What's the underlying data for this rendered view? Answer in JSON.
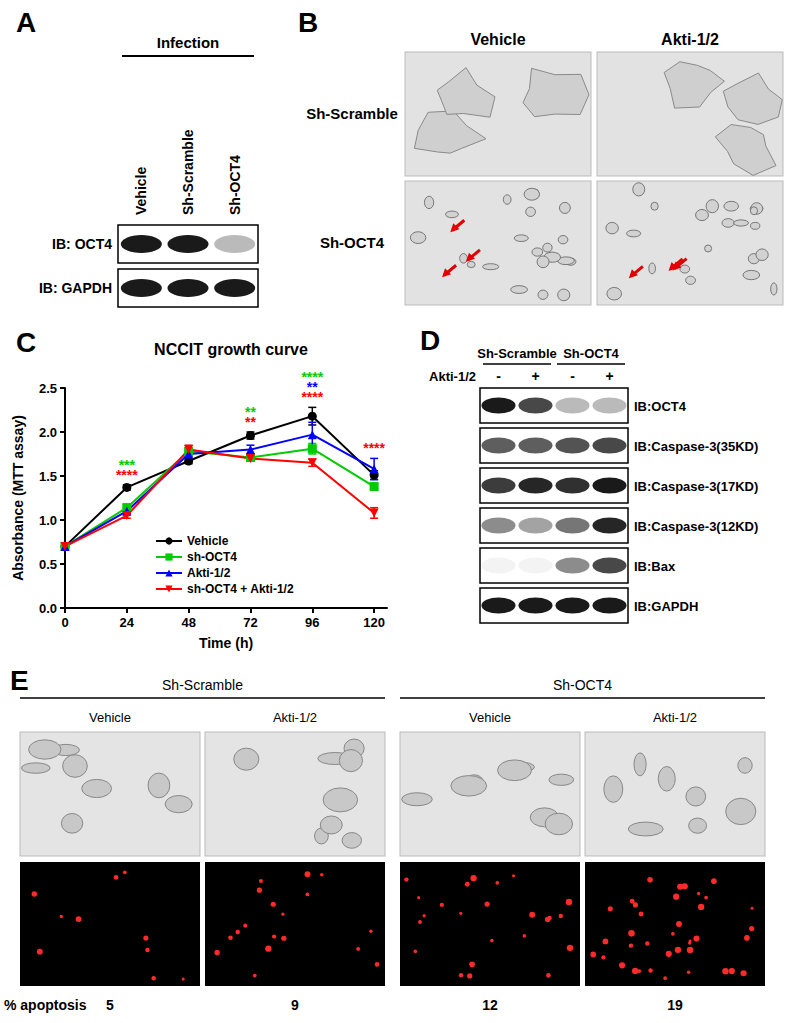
{
  "panels": {
    "A": {
      "label": "A",
      "header": "Infection",
      "lanes": [
        "Vehicle",
        "Sh-Scramble",
        "Sh-OCT4"
      ],
      "rows": [
        {
          "label": "IB: OCT4",
          "intensity": [
            1.0,
            1.0,
            0.3
          ]
        },
        {
          "label": "IB: GAPDH",
          "intensity": [
            1.0,
            1.0,
            1.0
          ]
        }
      ]
    },
    "B": {
      "label": "B",
      "columns": [
        "Vehicle",
        "Akti-1/2"
      ],
      "rows": [
        "Sh-Scramble",
        "Sh-OCT4"
      ]
    },
    "C": {
      "label": "C"
    },
    "D": {
      "label": "D",
      "groups": [
        "Sh-Scramble",
        "Sh-OCT4"
      ],
      "treatment": "Akti-1/2",
      "lanes": [
        "-",
        "+",
        "-",
        "+"
      ],
      "rows": [
        {
          "label": "IB:OCT4",
          "intensity": [
            1.0,
            0.8,
            0.3,
            0.3
          ]
        },
        {
          "label": "IB:Caspase-3(35KD)",
          "intensity": [
            0.7,
            0.7,
            0.75,
            0.8
          ]
        },
        {
          "label": "IB:Caspase-3(17KD)",
          "intensity": [
            0.85,
            0.95,
            0.9,
            1.0
          ]
        },
        {
          "label": "IB:Caspase-3(12KD)",
          "intensity": [
            0.5,
            0.4,
            0.6,
            0.95
          ]
        },
        {
          "label": "IB:Bax",
          "intensity": [
            0.05,
            0.05,
            0.5,
            0.8
          ]
        },
        {
          "label": "IB:GAPDH",
          "intensity": [
            1.0,
            1.0,
            1.0,
            1.0
          ]
        }
      ]
    },
    "E": {
      "label": "E",
      "groups": [
        "Sh-Scramble",
        "Sh-OCT4"
      ],
      "columns": [
        "Vehicle",
        "Akti-1/2",
        "Vehicle",
        "Akti-1/2"
      ],
      "row_label": "% apoptosis",
      "values": [
        5,
        9,
        12,
        19
      ]
    }
  },
  "chart_data": {
    "type": "line",
    "title": "NCCIT growth curve",
    "xlabel": "Time (h)",
    "ylabel": "Absorbance (MTT assay)",
    "x": [
      0,
      24,
      48,
      72,
      96,
      120
    ],
    "xlim": [
      0,
      125
    ],
    "xticks": [
      0,
      24,
      48,
      72,
      96,
      120
    ],
    "ylim": [
      0,
      2.5
    ],
    "yticks": [
      {
        "value": 0,
        "label": "0.0"
      },
      {
        "value": 0.5,
        "label": "0.5"
      },
      {
        "value": 1,
        "label": "1.0"
      },
      {
        "value": 1.5,
        "label": "1.5"
      },
      {
        "value": 2,
        "label": "2.0"
      },
      {
        "value": 2.5,
        "label": "2.5"
      }
    ],
    "grid": false,
    "legend": "lower center",
    "series": [
      {
        "name": "Vehicle",
        "color": "#000000",
        "marker": "circle",
        "values": [
          0.7,
          1.37,
          1.67,
          1.96,
          2.18,
          1.51
        ],
        "errors": [
          0.02,
          0.03,
          0.03,
          0.04,
          0.1,
          0.05
        ]
      },
      {
        "name": "sh-OCT4",
        "color": "#00cc00",
        "marker": "square",
        "values": [
          0.7,
          1.14,
          1.78,
          1.71,
          1.81,
          1.38
        ],
        "errors": [
          0.02,
          0.04,
          0.04,
          0.02,
          0.06,
          0.03
        ]
      },
      {
        "name": "Akti-1/2",
        "color": "#0000ff",
        "marker": "triangle",
        "values": [
          0.7,
          1.1,
          1.75,
          1.8,
          1.97,
          1.58
        ],
        "errors": [
          0.02,
          0.03,
          0.03,
          0.05,
          0.14,
          0.12
        ]
      },
      {
        "name": "sh-OCT4 + Akti-1/2",
        "color": "#ff0000",
        "marker": "triangle-down",
        "values": [
          0.7,
          1.05,
          1.8,
          1.7,
          1.65,
          1.08
        ],
        "errors": [
          0.02,
          0.03,
          0.05,
          0.03,
          0.04,
          0.06
        ]
      }
    ],
    "annotations": [
      {
        "x": 24,
        "marks": [
          {
            "text": "***",
            "color": "#00cc00"
          },
          {
            "text": "****",
            "color": "#ff0000"
          }
        ]
      },
      {
        "x": 72,
        "marks": [
          {
            "text": "**",
            "color": "#00cc00"
          },
          {
            "text": "**",
            "color": "#ff0000"
          }
        ]
      },
      {
        "x": 96,
        "marks": [
          {
            "text": "****",
            "color": "#00cc00"
          },
          {
            "text": "**",
            "color": "#0000ff"
          },
          {
            "text": "****",
            "color": "#ff0000"
          }
        ]
      },
      {
        "x": 120,
        "marks": [
          {
            "text": "****",
            "color": "#ff0000"
          }
        ]
      }
    ]
  }
}
